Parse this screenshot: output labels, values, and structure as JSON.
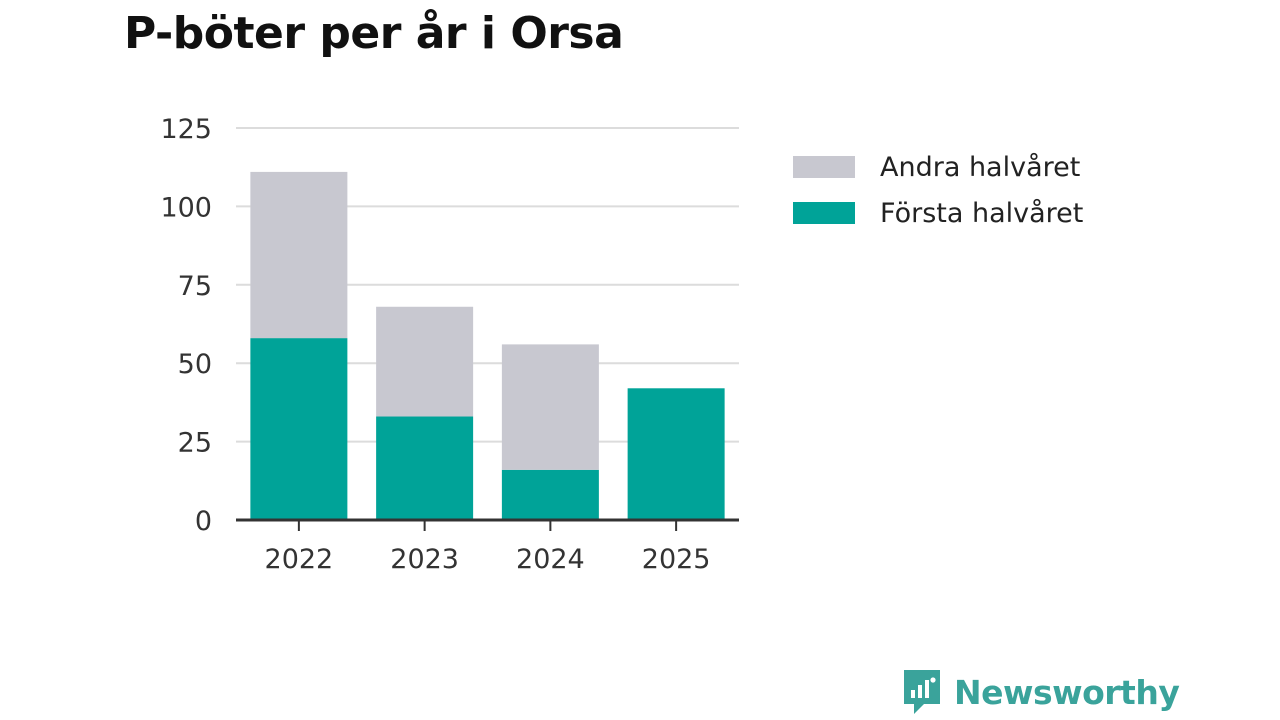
{
  "title": "P-böter per år i Orsa",
  "brand": {
    "name": "Newsworthy",
    "icon": "newsworthy-logo-icon",
    "color": "#3aa39b"
  },
  "chart_data": {
    "type": "bar",
    "stacked": true,
    "categories": [
      "2022",
      "2023",
      "2024",
      "2025"
    ],
    "series": [
      {
        "name": "Första halvåret",
        "color": "#00a398",
        "values": [
          58,
          33,
          16,
          42
        ]
      },
      {
        "name": "Andra halvåret",
        "color": "#c8c8d0",
        "values": [
          53,
          35,
          40,
          0
        ]
      }
    ],
    "title": "P-böter per år i Orsa",
    "xlabel": "",
    "ylabel": "",
    "ylim": [
      0,
      125
    ],
    "yticks": [
      0,
      25,
      50,
      75,
      100,
      125
    ],
    "grid": true,
    "legend_position": "top-right"
  }
}
